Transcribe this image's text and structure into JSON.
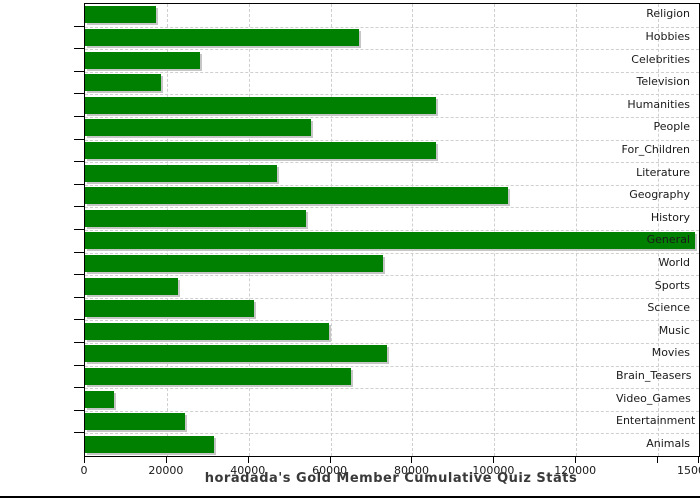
{
  "colors": {
    "bar_fill": "#008000",
    "bar_shadow": "#c6c6c6",
    "gridline": "#cfcfcf",
    "axis": "#000000",
    "tick_text": "#1a1a1a",
    "title_text": "#3a3a3a",
    "background": "#ffffff"
  },
  "chart_data": {
    "type": "bar",
    "orientation": "horizontal",
    "title": "horadada's Gold Member Cumulative Quiz Stats",
    "xlabel": "",
    "ylabel": "",
    "xlim": [
      0,
      150000
    ],
    "grid": "both",
    "legend_position": "none",
    "categories": [
      "Religion",
      "Hobbies",
      "Celebrities",
      "Television",
      "Humanities",
      "People",
      "For_Children",
      "Literature",
      "Geography",
      "History",
      "General",
      "World",
      "Sports",
      "Science",
      "Music",
      "Movies",
      "Brain_Teasers",
      "Video_Games",
      "Entertainment",
      "Animals"
    ],
    "values": [
      17300,
      67000,
      28100,
      18600,
      85700,
      55200,
      85700,
      47000,
      103300,
      54000,
      149000,
      72800,
      22700,
      41300,
      59500,
      73900,
      65100,
      7100,
      24400,
      31400
    ],
    "xticks": [
      0,
      20000,
      40000,
      60000,
      80000,
      100000,
      120000,
      140000,
      150000
    ],
    "xtick_labels": [
      "0",
      "20000",
      "40000",
      "60000",
      "80000",
      "100000",
      "120000",
      "",
      "150000"
    ]
  }
}
